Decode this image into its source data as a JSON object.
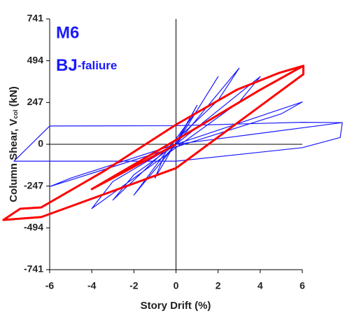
{
  "chart_data": {
    "type": "line",
    "annotations": {
      "label": "M6",
      "main": "BJ",
      "suffix": "-faliure"
    },
    "xlabel": "Story Drift (%)",
    "ylabel": {
      "text": "Column Shear, V",
      "sub": "col",
      "suffix": " (kN)"
    },
    "xlim": [
      -6,
      6
    ],
    "ylim": [
      -741,
      741
    ],
    "xticks": [
      -6,
      -4,
      -2,
      0,
      2,
      4,
      6
    ],
    "yticks": [
      -741,
      -494,
      -247,
      0,
      247,
      494,
      741
    ],
    "zero_lines": true,
    "series": [
      {
        "color": "#1a1aff",
        "x": [
          0,
          1,
          0.5,
          -1,
          -0.6,
          0,
          2,
          1,
          -2,
          -1,
          0,
          3,
          2,
          -3,
          -2,
          0,
          4,
          3,
          -4,
          -3,
          0,
          6,
          5,
          -6,
          -5,
          0,
          7.9,
          7.8,
          6,
          0,
          -6,
          -7.7,
          -6,
          0,
          6,
          7.9
        ],
        "values": [
          0,
          230,
          120,
          -200,
          -80,
          0,
          400,
          200,
          -300,
          -150,
          0,
          450,
          260,
          -330,
          -180,
          0,
          400,
          250,
          -380,
          -220,
          0,
          250,
          180,
          -250,
          -200,
          0,
          128,
          40,
          -20,
          -100,
          -100,
          -100,
          108,
          110,
          130,
          128
        ]
      },
      {
        "color": "#ff0000",
        "x": [
          6.05,
          6.05,
          0,
          -6.4,
          -8.2,
          -7.4,
          -6.4,
          -3.4,
          0,
          2.9,
          4.9,
          6.05,
          3.9,
          0,
          -4,
          0
        ],
        "values": [
          464,
          414,
          -141,
          -430,
          -447,
          -381,
          -373,
          -157,
          116,
          323,
          422,
          464,
          315,
          25,
          -265,
          0
        ]
      }
    ]
  }
}
